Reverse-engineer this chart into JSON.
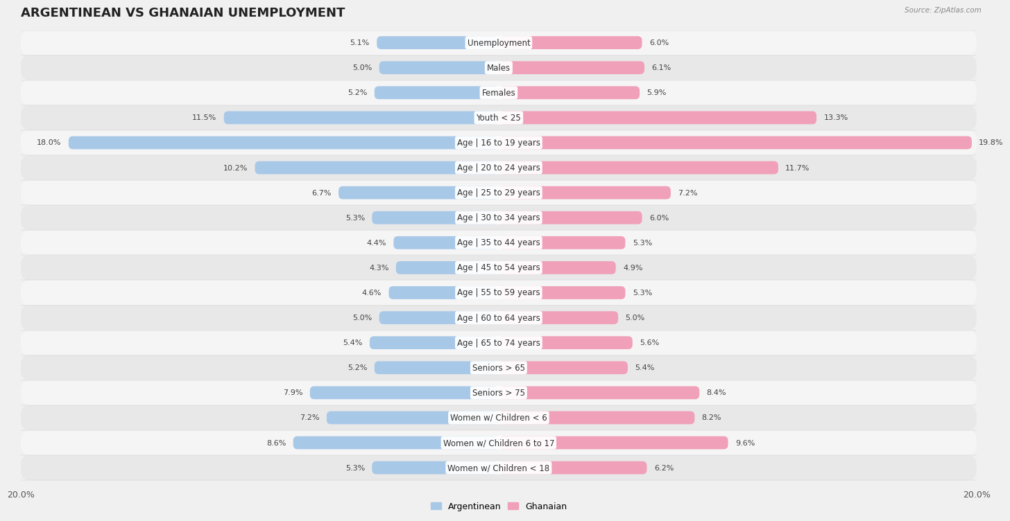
{
  "title": "ARGENTINEAN VS GHANAIAN UNEMPLOYMENT",
  "source": "Source: ZipAtlas.com",
  "categories": [
    "Unemployment",
    "Males",
    "Females",
    "Youth < 25",
    "Age | 16 to 19 years",
    "Age | 20 to 24 years",
    "Age | 25 to 29 years",
    "Age | 30 to 34 years",
    "Age | 35 to 44 years",
    "Age | 45 to 54 years",
    "Age | 55 to 59 years",
    "Age | 60 to 64 years",
    "Age | 65 to 74 years",
    "Seniors > 65",
    "Seniors > 75",
    "Women w/ Children < 6",
    "Women w/ Children 6 to 17",
    "Women w/ Children < 18"
  ],
  "argentinean": [
    5.1,
    5.0,
    5.2,
    11.5,
    18.0,
    10.2,
    6.7,
    5.3,
    4.4,
    4.3,
    4.6,
    5.0,
    5.4,
    5.2,
    7.9,
    7.2,
    8.6,
    5.3
  ],
  "ghanaian": [
    6.0,
    6.1,
    5.9,
    13.3,
    19.8,
    11.7,
    7.2,
    6.0,
    5.3,
    4.9,
    5.3,
    5.0,
    5.6,
    5.4,
    8.4,
    8.2,
    9.6,
    6.2
  ],
  "arg_color": "#a8c8e8",
  "gha_color": "#f0a0b8",
  "row_color_light": "#f5f5f5",
  "row_color_dark": "#e8e8e8",
  "background_color": "#f0f0f0",
  "xlim": 20.0,
  "legend_arg": "Argentinean",
  "legend_gha": "Ghanaian",
  "title_fontsize": 13,
  "label_fontsize": 8.5,
  "value_fontsize": 8.0
}
